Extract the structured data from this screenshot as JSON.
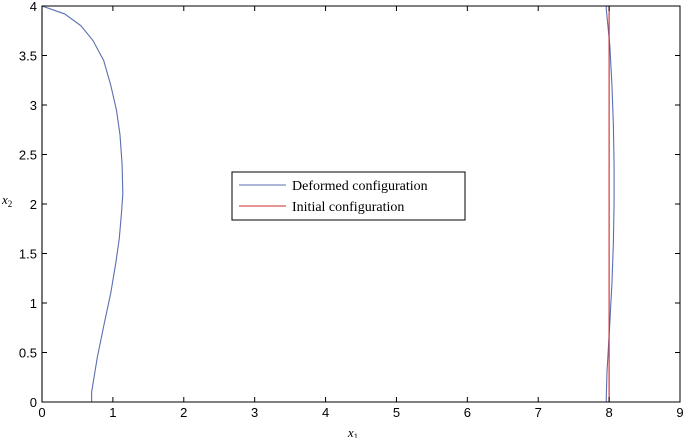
{
  "chart_data": {
    "type": "line",
    "xlabel": "x",
    "xlabel_sub": "1",
    "ylabel": "x",
    "ylabel_sub": "2",
    "xlim": [
      0,
      9
    ],
    "ylim": [
      0,
      4
    ],
    "xticks": [
      0,
      1,
      2,
      3,
      4,
      5,
      6,
      7,
      8,
      9
    ],
    "yticks": [
      0,
      0.5,
      1,
      1.5,
      2,
      2.5,
      3,
      3.5,
      4
    ],
    "xtick_labels": [
      "0",
      "1",
      "2",
      "3",
      "4",
      "5",
      "6",
      "7",
      "8",
      "9"
    ],
    "ytick_labels": [
      "0",
      "0.5",
      "1",
      "1.5",
      "2",
      "2.5",
      "3",
      "3.5",
      "4"
    ],
    "grid": false,
    "legend_position": "center",
    "series": [
      {
        "name": "Deformed configuration",
        "color": "#5a6fb0",
        "x": [
          0.7,
          0.7,
          0.78,
          0.88,
          0.97,
          1.04,
          1.09,
          1.12,
          1.14,
          1.13,
          1.1,
          1.05,
          0.97,
          0.87,
          0.72,
          0.55,
          0.32,
          0.0,
          0.0,
          7.96,
          7.96,
          8.01,
          8.04,
          8.06,
          8.07,
          8.07,
          8.06,
          8.04,
          8.01,
          7.97,
          7.96,
          7.96,
          0.7
        ],
        "y": [
          0.0,
          0.1,
          0.45,
          0.8,
          1.1,
          1.4,
          1.65,
          1.9,
          2.1,
          2.4,
          2.7,
          2.95,
          3.2,
          3.45,
          3.65,
          3.8,
          3.92,
          4.0,
          4.0,
          4.0,
          3.97,
          3.6,
          3.2,
          2.8,
          2.4,
          2.0,
          1.6,
          1.2,
          0.8,
          0.3,
          0.05,
          0.0,
          0.0
        ]
      },
      {
        "name": "Initial configuration",
        "color": "#cc2a2a",
        "x": [
          0,
          8,
          8,
          0,
          0
        ],
        "y": [
          0,
          0,
          4,
          4,
          0
        ]
      }
    ]
  }
}
